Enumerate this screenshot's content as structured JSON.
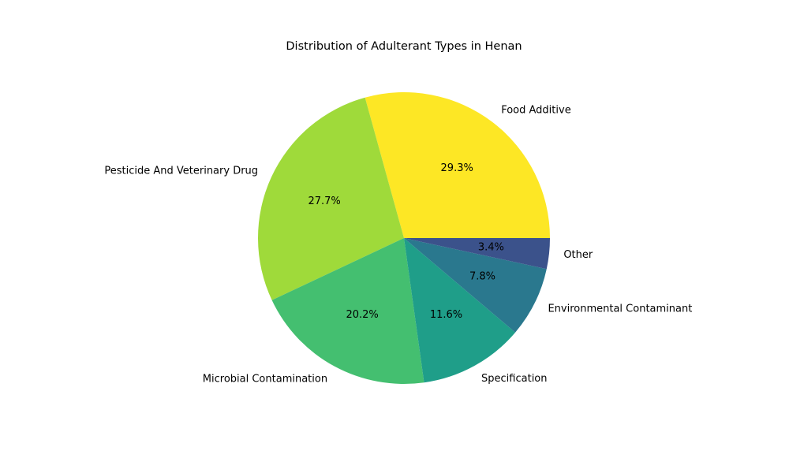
{
  "chart_data": {
    "type": "pie",
    "title": "Distribution of Adulterant Types in Henan",
    "slices": [
      {
        "label": "Food Additive",
        "value": 29.3,
        "pct_label": "29.3%",
        "color": "#fde725"
      },
      {
        "label": "Pesticide And Veterinary Drug",
        "value": 27.7,
        "pct_label": "27.7%",
        "color": "#9fda3a"
      },
      {
        "label": "Microbial Contamination",
        "value": 20.2,
        "pct_label": "20.2%",
        "color": "#44bf70"
      },
      {
        "label": "Specification",
        "value": 11.6,
        "pct_label": "11.6%",
        "color": "#1f9e89"
      },
      {
        "label": "Environmental Contaminant",
        "value": 7.8,
        "pct_label": "7.8%",
        "color": "#2a788e"
      },
      {
        "label": "Other",
        "value": 3.4,
        "pct_label": "3.4%",
        "color": "#3b528b"
      }
    ],
    "start_angle_deg": 0,
    "direction": "counterclockwise",
    "legend": "none"
  }
}
